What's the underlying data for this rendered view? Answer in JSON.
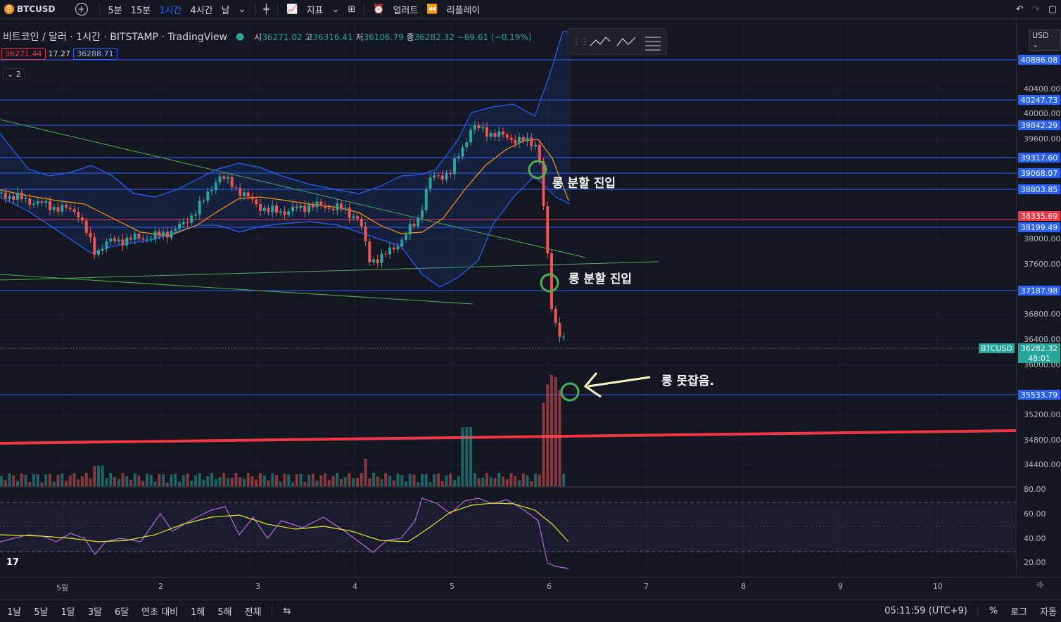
{
  "toolbar": {
    "symbol": "BTCUSD",
    "intervals": [
      "5분",
      "15분",
      "1시간",
      "4시간",
      "날"
    ],
    "active_interval": "1시간",
    "indicators_label": "지표",
    "alert_label": "얼러트",
    "replay_label": "리플레이"
  },
  "legend": {
    "title": "비트코인 / 달러 · 1시간 · BITSTAMP · TradingView",
    "o_key": "시",
    "o_val": "36271.02",
    "h_key": "고",
    "h_val": "36316.41",
    "l_key": "저",
    "l_val": "36106.79",
    "c_key": "종",
    "c_val": "36282.32",
    "change": "−69.61 (−0.19%)"
  },
  "price_tags": {
    "bid": "36271.44",
    "spread": "17.27",
    "ask": "36288.71"
  },
  "collapse_count": "2",
  "axis": {
    "currency": "USD",
    "ticks": [
      "40400.00",
      "40000.00",
      "39600.00",
      "38000.00",
      "37600.00",
      "36800.00",
      "36400.00",
      "36000.00",
      "35200.00",
      "34800.00",
      "34400.00"
    ],
    "rsi_ticks": [
      "80.00",
      "60.00",
      "40.00",
      "20.00"
    ],
    "level_tags": [
      "40886.08",
      "40247.73",
      "39842.29",
      "39317.60",
      "39068.07",
      "38803.85",
      "38199.49",
      "37187.98",
      "35533.79"
    ],
    "red_tag": "38335.69",
    "current_price": "36282.32",
    "countdown": "48:01",
    "symbol_chip": "BTCUSD"
  },
  "annotations": {
    "a1": "롱 분할 진입",
    "a2": "롱 분할 진입",
    "a3": "롱 못잡음."
  },
  "time_axis": [
    "5월",
    "2",
    "3",
    "4",
    "5",
    "6",
    "7",
    "8",
    "9",
    "10"
  ],
  "bottom": {
    "ranges": [
      "1날",
      "5날",
      "1달",
      "3달",
      "6달",
      "연초 대비",
      "1해",
      "5해",
      "전체"
    ],
    "clock": "05:11:59 (UTC+9)",
    "percent": "%",
    "log": "로그",
    "auto": "자동"
  },
  "colors": {
    "up": "#26a69a",
    "down": "#ef5350",
    "level": "#2962ff",
    "bb": "#2962ff",
    "ma": "#ff9800",
    "rsi": "#b36bdc",
    "rsi_ma": "#e5e526"
  }
}
